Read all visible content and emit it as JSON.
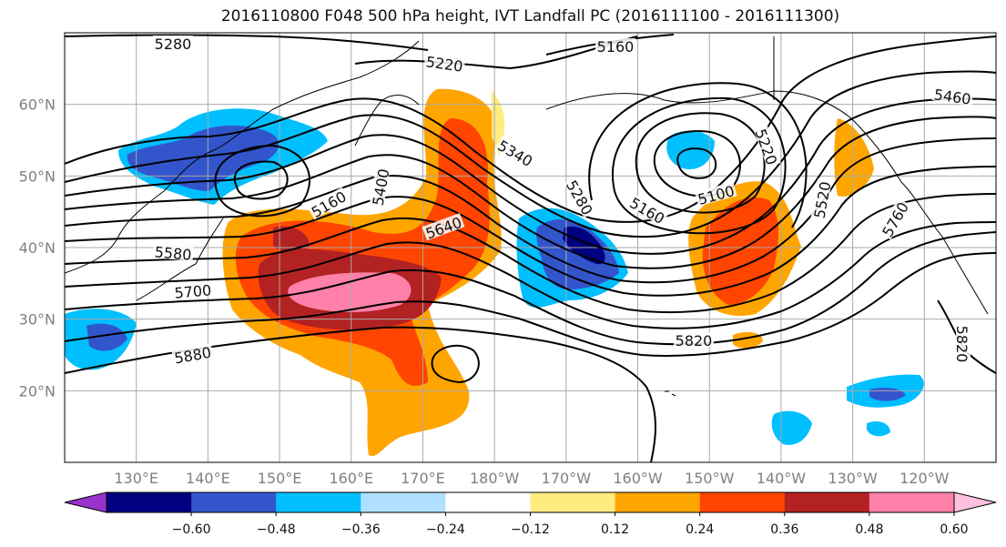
{
  "title": "2016110800 F048 500 hPa height, IVT Landfall PC (2016111100 - 2016111300)",
  "map": {
    "lon_range": [
      120,
      250
    ],
    "lat_range": [
      10,
      70
    ],
    "lat_labels": [
      "60°N",
      "50°N",
      "40°N",
      "30°N",
      "20°N"
    ],
    "lat_values": [
      60,
      50,
      40,
      30,
      20
    ],
    "lon_labels": [
      "130°E",
      "140°E",
      "150°E",
      "160°E",
      "170°E",
      "180°W",
      "170°W",
      "160°W",
      "150°W",
      "140°W",
      "130°W",
      "120°W"
    ],
    "lon_values": [
      130,
      140,
      150,
      160,
      170,
      180,
      190,
      200,
      210,
      220,
      230,
      240
    ],
    "contour_labels": [
      "5280",
      "5160",
      "5220",
      "5460",
      "5340",
      "5400",
      "5280",
      "5160",
      "5100",
      "5220",
      "5520",
      "5160",
      "5640",
      "5580",
      "5760",
      "5700",
      "5820",
      "5880",
      "5820"
    ]
  },
  "colorbar": {
    "ticks": [
      "−0.60",
      "−0.48",
      "−0.36",
      "−0.24",
      "−0.12",
      "0.12",
      "0.24",
      "0.36",
      "0.48",
      "0.60"
    ],
    "colors": [
      "#9933cc",
      "#000080",
      "#3355cc",
      "#00bfff",
      "#b0e0ff",
      "#ffffff",
      "#ffeb80",
      "#ffa500",
      "#ff4500",
      "#b22222",
      "#ff80a8",
      "#ffc0e0"
    ]
  },
  "colors": {
    "orange": "#ffa500",
    "redorange": "#ff4500",
    "darkred": "#b22222",
    "pink": "#ff80a8",
    "yellow": "#ffeb80",
    "lightblue": "#b0e0ff",
    "cyan": "#00bfff",
    "blue": "#3355cc",
    "navy": "#000080"
  }
}
